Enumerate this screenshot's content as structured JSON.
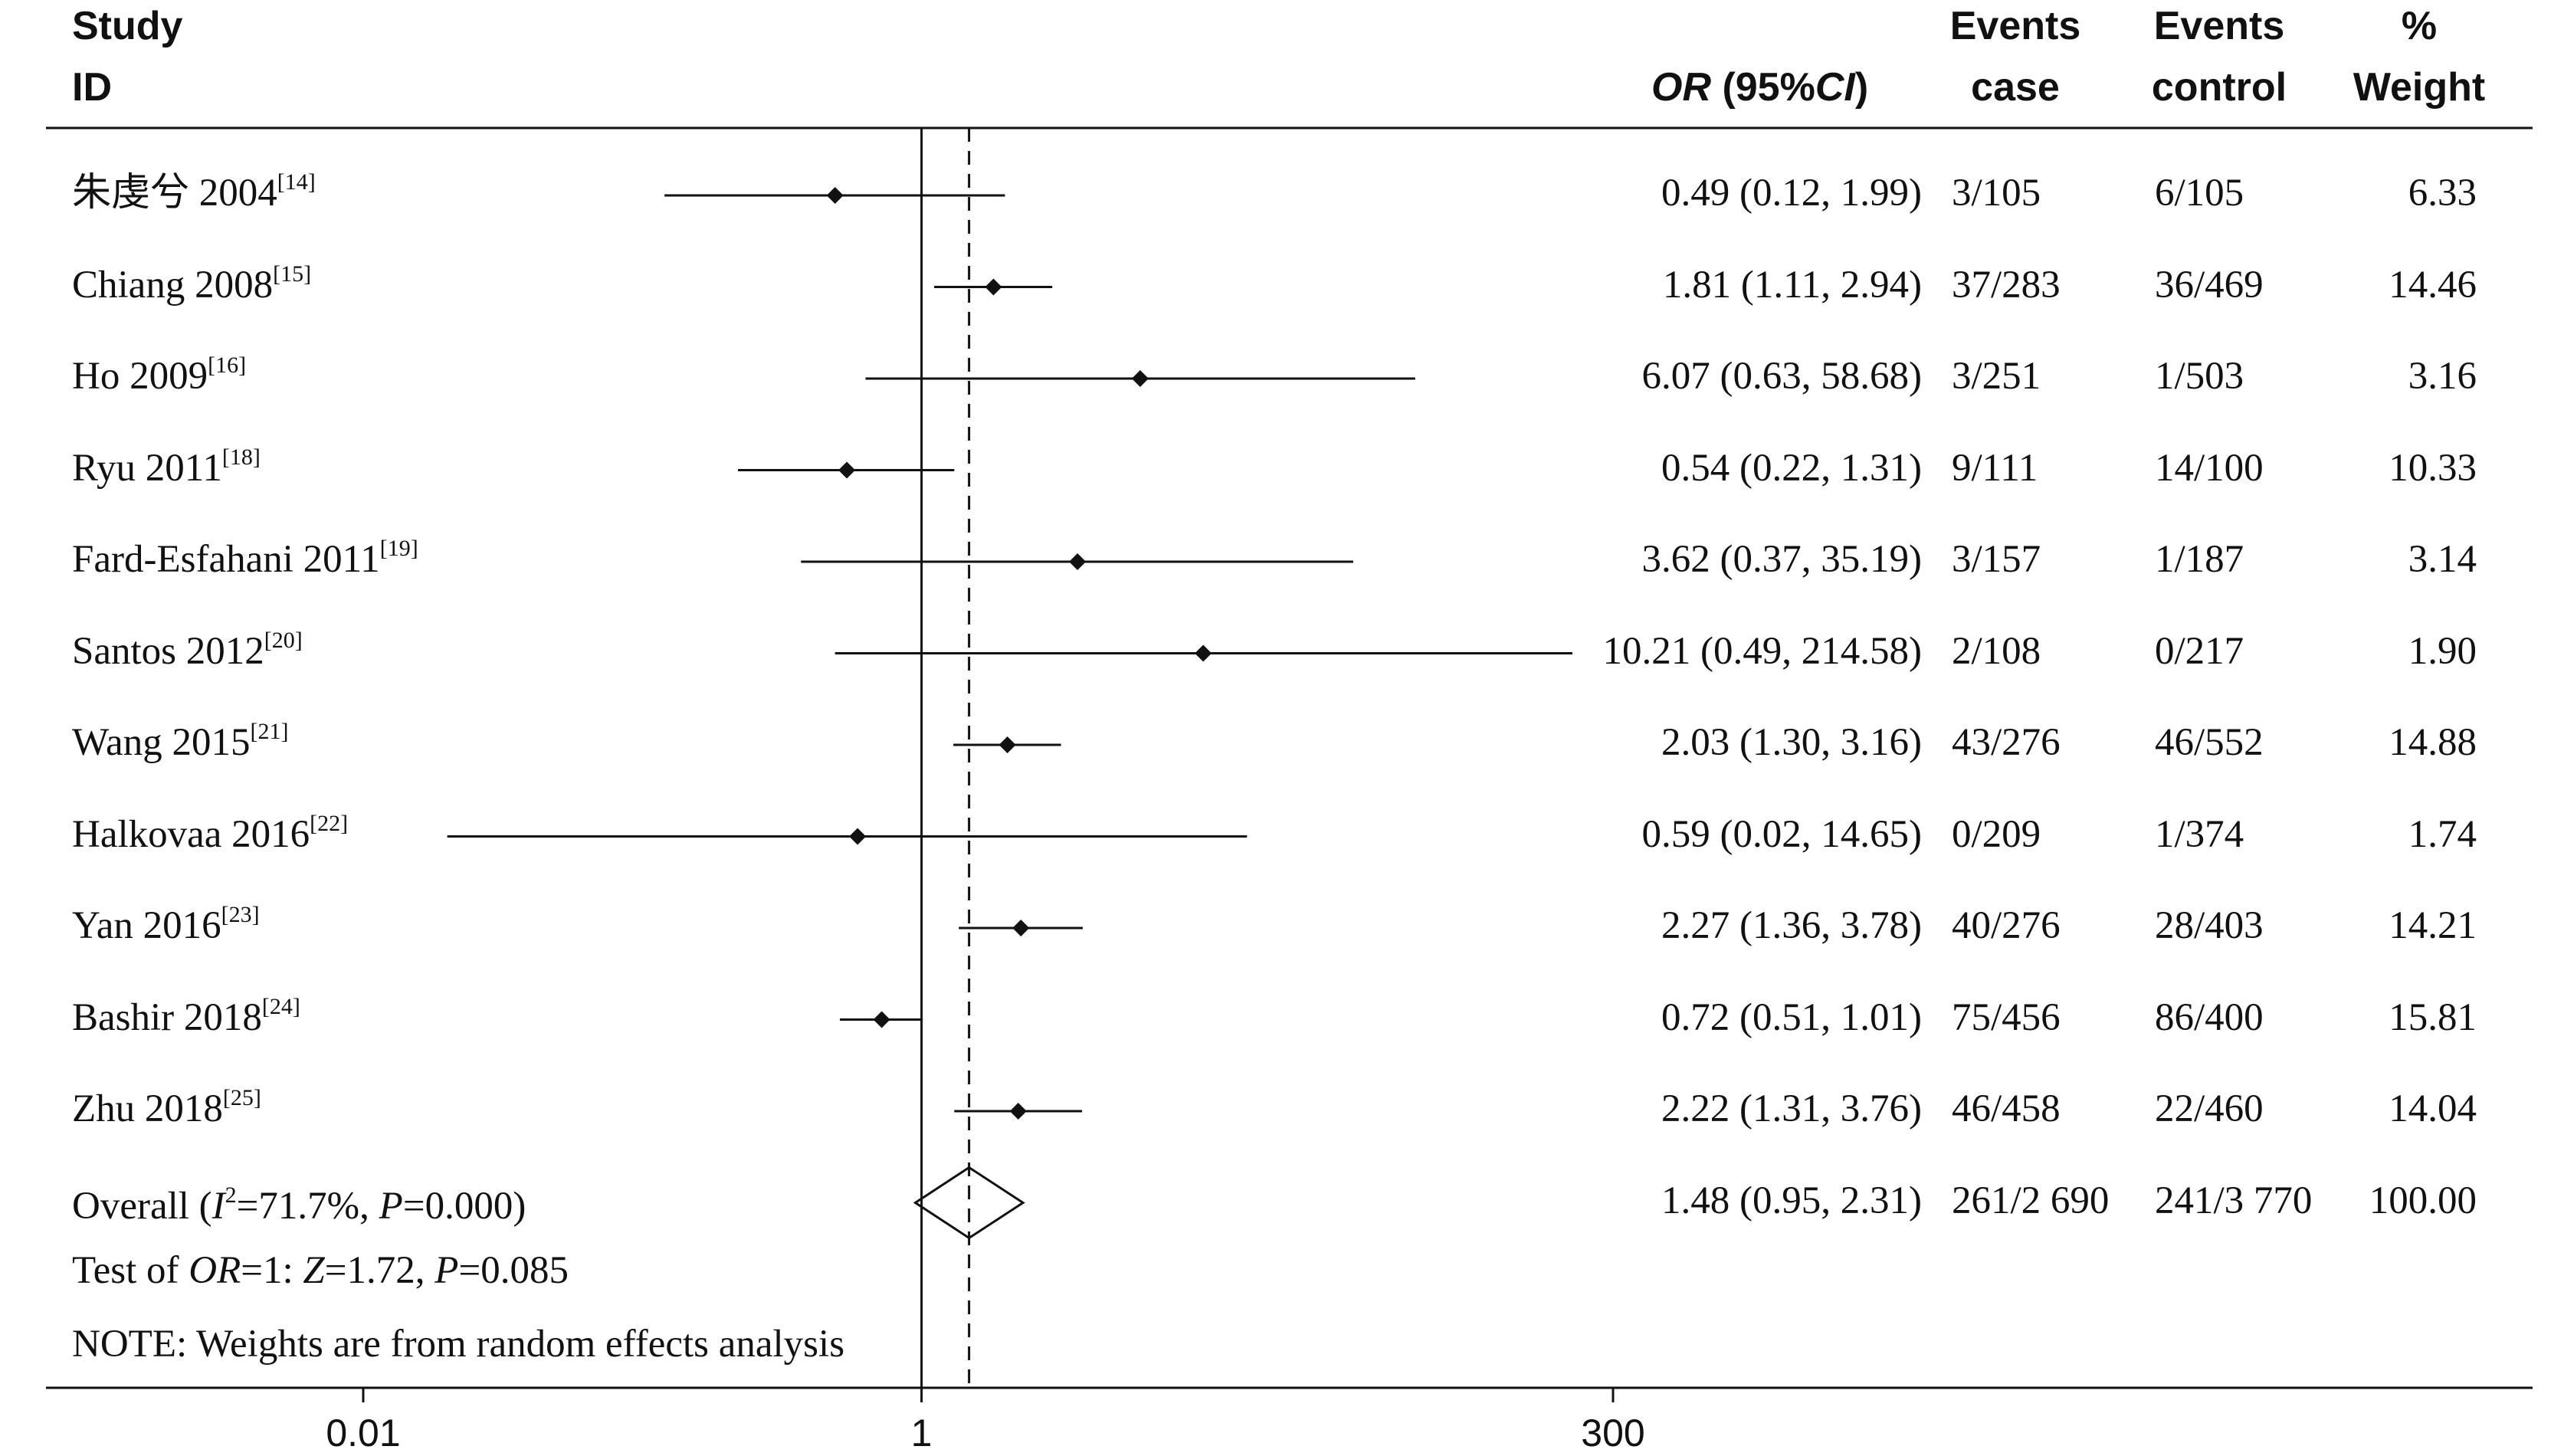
{
  "header": {
    "study_1": "Study",
    "study_2": "ID",
    "or_label": "OR",
    "or_suffix": " (95%",
    "ci_label": "CI",
    "or_close": ")",
    "case_1": "Events",
    "case_2": "case",
    "ctrl_1": "Events",
    "ctrl_2": "control",
    "wt_1": "%",
    "wt_2": "Weight"
  },
  "chart_data": {
    "type": "forest",
    "x_scale": "log",
    "xlim": [
      0.01,
      300
    ],
    "x_ticks": [
      "0.01",
      "1",
      "300"
    ],
    "null_line": 1,
    "studies": [
      {
        "name": "朱虔兮 2004",
        "ref": "[14]",
        "or": 0.49,
        "lo": 0.12,
        "hi": 1.99,
        "or_text": "0.49 (0.12, 1.99)",
        "case": "3/105",
        "control": "6/105",
        "weight": "6.33"
      },
      {
        "name": "Chiang 2008",
        "ref": "[15]",
        "or": 1.81,
        "lo": 1.11,
        "hi": 2.94,
        "or_text": "1.81 (1.11, 2.94)",
        "case": "37/283",
        "control": "36/469",
        "weight": "14.46"
      },
      {
        "name": "Ho 2009",
        "ref": "[16]",
        "or": 6.07,
        "lo": 0.63,
        "hi": 58.68,
        "or_text": "6.07 (0.63, 58.68)",
        "case": "3/251",
        "control": "1/503",
        "weight": "3.16"
      },
      {
        "name": "Ryu 2011",
        "ref": "[18]",
        "or": 0.54,
        "lo": 0.22,
        "hi": 1.31,
        "or_text": "0.54 (0.22, 1.31)",
        "case": "9/111",
        "control": "14/100",
        "weight": "10.33"
      },
      {
        "name": "Fard-Esfahani 2011",
        "ref": "[19]",
        "or": 3.62,
        "lo": 0.37,
        "hi": 35.19,
        "or_text": "3.62 (0.37, 35.19)",
        "case": "3/157",
        "control": "1/187",
        "weight": "3.14"
      },
      {
        "name": "Santos 2012",
        "ref": "[20]",
        "or": 10.21,
        "lo": 0.49,
        "hi": 214.58,
        "or_text": "10.21 (0.49, 214.58)",
        "case": "2/108",
        "control": "0/217",
        "weight": "1.90"
      },
      {
        "name": "Wang 2015",
        "ref": "[21]",
        "or": 2.03,
        "lo": 1.3,
        "hi": 3.16,
        "or_text": "2.03 (1.30, 3.16)",
        "case": "43/276",
        "control": "46/552",
        "weight": "14.88"
      },
      {
        "name": "Halkovaa 2016",
        "ref": "[22]",
        "or": 0.59,
        "lo": 0.02,
        "hi": 14.65,
        "or_text": "0.59 (0.02, 14.65)",
        "case": "0/209",
        "control": "1/374",
        "weight": "1.74"
      },
      {
        "name": "Yan 2016",
        "ref": "[23]",
        "or": 2.27,
        "lo": 1.36,
        "hi": 3.78,
        "or_text": "2.27 (1.36, 3.78)",
        "case": "40/276",
        "control": "28/403",
        "weight": "14.21"
      },
      {
        "name": "Bashir 2018",
        "ref": "[24]",
        "or": 0.72,
        "lo": 0.51,
        "hi": 1.01,
        "or_text": "0.72 (0.51, 1.01)",
        "case": "75/456",
        "control": "86/400",
        "weight": "15.81"
      },
      {
        "name": "Zhu 2018",
        "ref": "[25]",
        "or": 2.22,
        "lo": 1.31,
        "hi": 3.76,
        "or_text": "2.22 (1.31, 3.76)",
        "case": "46/458",
        "control": "22/460",
        "weight": "14.04"
      }
    ],
    "overall": {
      "or": 1.48,
      "lo": 0.95,
      "hi": 2.31,
      "or_text": "1.48 (0.95, 2.31)",
      "case": "261/2 690",
      "control": "241/3 770",
      "weight": "100.00"
    }
  },
  "overall_label": {
    "prefix": "Overall  (",
    "i_sym": "I",
    "sq": "2",
    "mid": "=71.7%, ",
    "p_sym": "P",
    "end": "=0.000)"
  },
  "test_label": {
    "prefix": "Test of ",
    "or_sym": "OR",
    "mid": "=1: ",
    "z_sym": "Z",
    "mid2": "=1.72, ",
    "p_sym": "P",
    "end": "=0.085"
  },
  "note": "NOTE: Weights are from random effects analysis"
}
